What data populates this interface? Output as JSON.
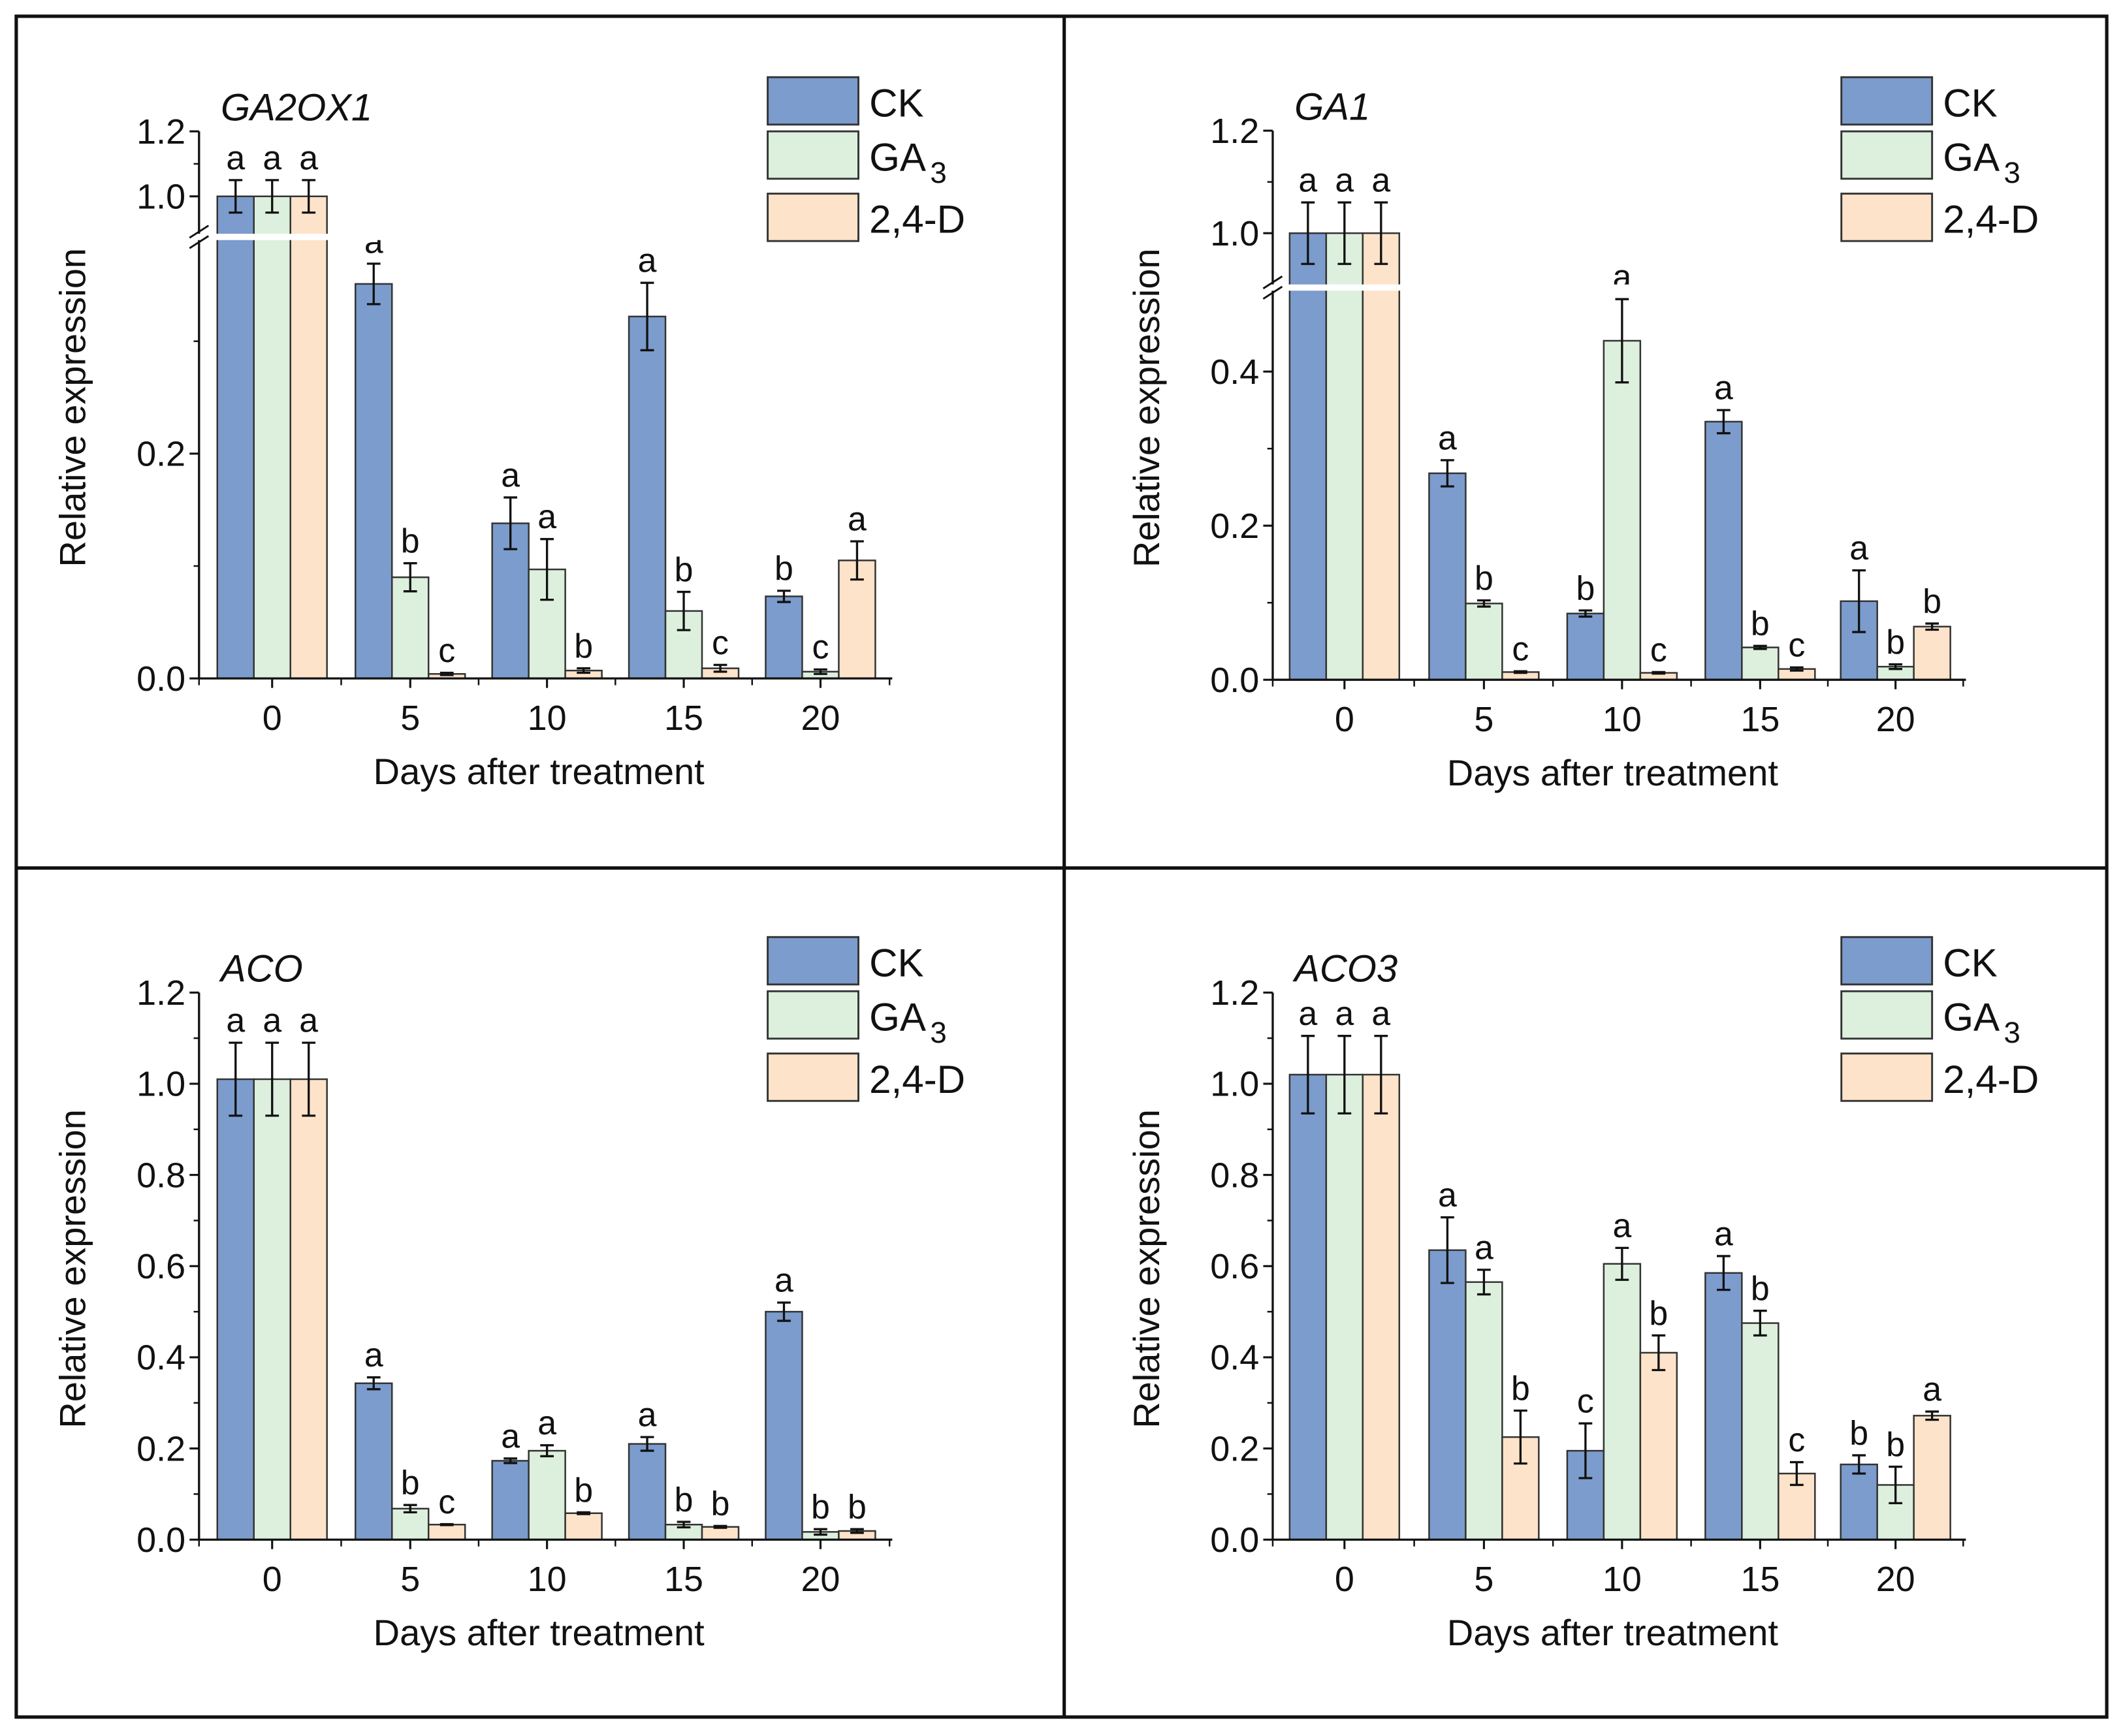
{
  "chart_data": [
    {
      "type": "bar",
      "title": "GA2OX1",
      "xlabel": "Days after treatment",
      "ylabel": "Relative expression",
      "categories": [
        "0",
        "5",
        "10",
        "15",
        "20"
      ],
      "ylim": [
        0,
        1.2
      ],
      "axis_break": {
        "lower": [
          0,
          0.39
        ],
        "upper": [
          0.885,
          1.2
        ]
      },
      "major_ticks": [
        {
          "v": 0,
          "label": "0.0"
        },
        {
          "v": 0.2,
          "label": "0.2"
        },
        {
          "v": 1.0,
          "label": "1.0"
        },
        {
          "v": 1.2,
          "label": "1.2"
        }
      ],
      "minor_ticks": [
        0.1,
        0.3,
        1.1
      ],
      "legend": [
        {
          "text": "CK",
          "sub": ""
        },
        {
          "text": "GA",
          "sub": "3"
        },
        {
          "text": "2,4-D",
          "sub": ""
        }
      ],
      "legend_position": "top-right",
      "series": [
        {
          "name": "CK",
          "color": "#7b9ccc",
          "values": [
            1.0,
            0.351,
            0.138,
            0.322,
            0.073
          ],
          "errors": [
            0.05,
            0.018,
            0.023,
            0.03,
            0.005
          ],
          "letters": [
            "a",
            "a",
            "a",
            "a",
            "b"
          ]
        },
        {
          "name": "GA3",
          "color": "#dcf0dd",
          "values": [
            1.0,
            0.09,
            0.097,
            0.06,
            0.006
          ],
          "errors": [
            0.05,
            0.0125,
            0.027,
            0.017,
            0.002
          ],
          "letters": [
            "a",
            "b",
            "a",
            "b",
            "c"
          ]
        },
        {
          "name": "2,4-D",
          "color": "#fde3c9",
          "values": [
            1.0,
            0.004,
            0.007,
            0.009,
            0.105
          ],
          "errors": [
            0.05,
            0.001,
            0.002,
            0.003,
            0.017
          ],
          "letters": [
            "a",
            "c",
            "b",
            "c",
            "a"
          ]
        }
      ]
    },
    {
      "type": "bar",
      "title": "GA1",
      "xlabel": "Days after treatment",
      "ylabel": "Relative expression",
      "categories": [
        "0",
        "5",
        "10",
        "15",
        "20"
      ],
      "ylim": [
        0,
        1.2
      ],
      "axis_break": {
        "lower": [
          0,
          0.505
        ],
        "upper": [
          0.9,
          1.2
        ]
      },
      "major_ticks": [
        {
          "v": 0,
          "label": "0.0"
        },
        {
          "v": 0.2,
          "label": "0.2"
        },
        {
          "v": 0.4,
          "label": "0.4"
        },
        {
          "v": 1.0,
          "label": "1.0"
        },
        {
          "v": 1.2,
          "label": "1.2"
        }
      ],
      "minor_ticks": [
        0.1,
        0.3,
        1.1
      ],
      "legend": [
        {
          "text": "CK",
          "sub": ""
        },
        {
          "text": "GA",
          "sub": "3"
        },
        {
          "text": "2,4-D",
          "sub": ""
        }
      ],
      "legend_position": "top-right",
      "series": [
        {
          "name": "CK",
          "color": "#7b9ccc",
          "values": [
            1.0,
            0.268,
            0.086,
            0.335,
            0.102
          ],
          "errors": [
            0.06,
            0.017,
            0.004,
            0.015,
            0.04
          ],
          "letters": [
            "a",
            "a",
            "b",
            "a",
            "a"
          ]
        },
        {
          "name": "GA3",
          "color": "#dcf0dd",
          "values": [
            1.0,
            0.099,
            0.44,
            0.042,
            0.017
          ],
          "errors": [
            0.06,
            0.004,
            0.054,
            0.002,
            0.003
          ],
          "letters": [
            "a",
            "b",
            "a",
            "b",
            "b"
          ]
        },
        {
          "name": "2,4-D",
          "color": "#fde3c9",
          "values": [
            1.0,
            0.01,
            0.009,
            0.014,
            0.069
          ],
          "errors": [
            0.06,
            0.001,
            0.001,
            0.002,
            0.004
          ],
          "letters": [
            "a",
            "c",
            "c",
            "c",
            "b"
          ]
        }
      ]
    },
    {
      "type": "bar",
      "title": "ACO",
      "xlabel": "Days after treatment",
      "ylabel": "Relative expression",
      "categories": [
        "0",
        "5",
        "10",
        "15",
        "20"
      ],
      "ylim": [
        0,
        1.2
      ],
      "major_ticks": [
        {
          "v": 0,
          "label": "0.0"
        },
        {
          "v": 0.2,
          "label": "0.2"
        },
        {
          "v": 0.4,
          "label": "0.4"
        },
        {
          "v": 0.6,
          "label": "0.6"
        },
        {
          "v": 0.8,
          "label": "0.8"
        },
        {
          "v": 1.0,
          "label": "1.0"
        },
        {
          "v": 1.2,
          "label": "1.2"
        }
      ],
      "minor_ticks": [
        0.1,
        0.3,
        0.5,
        0.7,
        0.9,
        1.1
      ],
      "legend": [
        {
          "text": "CK",
          "sub": ""
        },
        {
          "text": "GA",
          "sub": "3"
        },
        {
          "text": "2,4-D",
          "sub": ""
        }
      ],
      "legend_position": "top-right",
      "series": [
        {
          "name": "CK",
          "color": "#7b9ccc",
          "values": [
            1.01,
            0.343,
            0.173,
            0.21,
            0.5
          ],
          "errors": [
            0.08,
            0.013,
            0.005,
            0.015,
            0.02
          ],
          "letters": [
            "a",
            "a",
            "a",
            "a",
            "a"
          ]
        },
        {
          "name": "GA3",
          "color": "#dcf0dd",
          "values": [
            1.01,
            0.068,
            0.195,
            0.033,
            0.017
          ],
          "errors": [
            0.08,
            0.008,
            0.012,
            0.006,
            0.006
          ],
          "letters": [
            "a",
            "b",
            "a",
            "b",
            "b"
          ]
        },
        {
          "name": "2,4-D",
          "color": "#fde3c9",
          "values": [
            1.01,
            0.033,
            0.058,
            0.028,
            0.019
          ],
          "errors": [
            0.08,
            0.001,
            0.002,
            0.002,
            0.004
          ],
          "letters": [
            "a",
            "c",
            "b",
            "b",
            "b"
          ]
        }
      ]
    },
    {
      "type": "bar",
      "title": "ACO3",
      "xlabel": "Days after treatment",
      "ylabel": "Relative expression",
      "categories": [
        "0",
        "5",
        "10",
        "15",
        "20"
      ],
      "ylim": [
        0,
        1.2
      ],
      "major_ticks": [
        {
          "v": 0,
          "label": "0.0"
        },
        {
          "v": 0.2,
          "label": "0.2"
        },
        {
          "v": 0.4,
          "label": "0.4"
        },
        {
          "v": 0.6,
          "label": "0.6"
        },
        {
          "v": 0.8,
          "label": "0.8"
        },
        {
          "v": 1.0,
          "label": "1.0"
        },
        {
          "v": 1.2,
          "label": "1.2"
        }
      ],
      "minor_ticks": [
        0.1,
        0.3,
        0.5,
        0.7,
        0.9,
        1.1
      ],
      "legend": [
        {
          "text": "CK",
          "sub": ""
        },
        {
          "text": "GA",
          "sub": "3"
        },
        {
          "text": "2,4-D",
          "sub": ""
        }
      ],
      "legend_position": "top-right",
      "series": [
        {
          "name": "CK",
          "color": "#7b9ccc",
          "values": [
            1.02,
            0.635,
            0.195,
            0.585,
            0.165
          ],
          "errors": [
            0.085,
            0.072,
            0.06,
            0.037,
            0.02
          ],
          "letters": [
            "a",
            "a",
            "c",
            "a",
            "b"
          ]
        },
        {
          "name": "GA3",
          "color": "#dcf0dd",
          "values": [
            1.02,
            0.565,
            0.605,
            0.475,
            0.12
          ],
          "errors": [
            0.085,
            0.027,
            0.035,
            0.027,
            0.04
          ],
          "letters": [
            "a",
            "a",
            "a",
            "b",
            "b"
          ]
        },
        {
          "name": "2,4-D",
          "color": "#fde3c9",
          "values": [
            1.02,
            0.225,
            0.41,
            0.145,
            0.272
          ],
          "errors": [
            0.085,
            0.058,
            0.038,
            0.025,
            0.009
          ],
          "letters": [
            "a",
            "b",
            "b",
            "c",
            "a"
          ]
        }
      ]
    }
  ]
}
